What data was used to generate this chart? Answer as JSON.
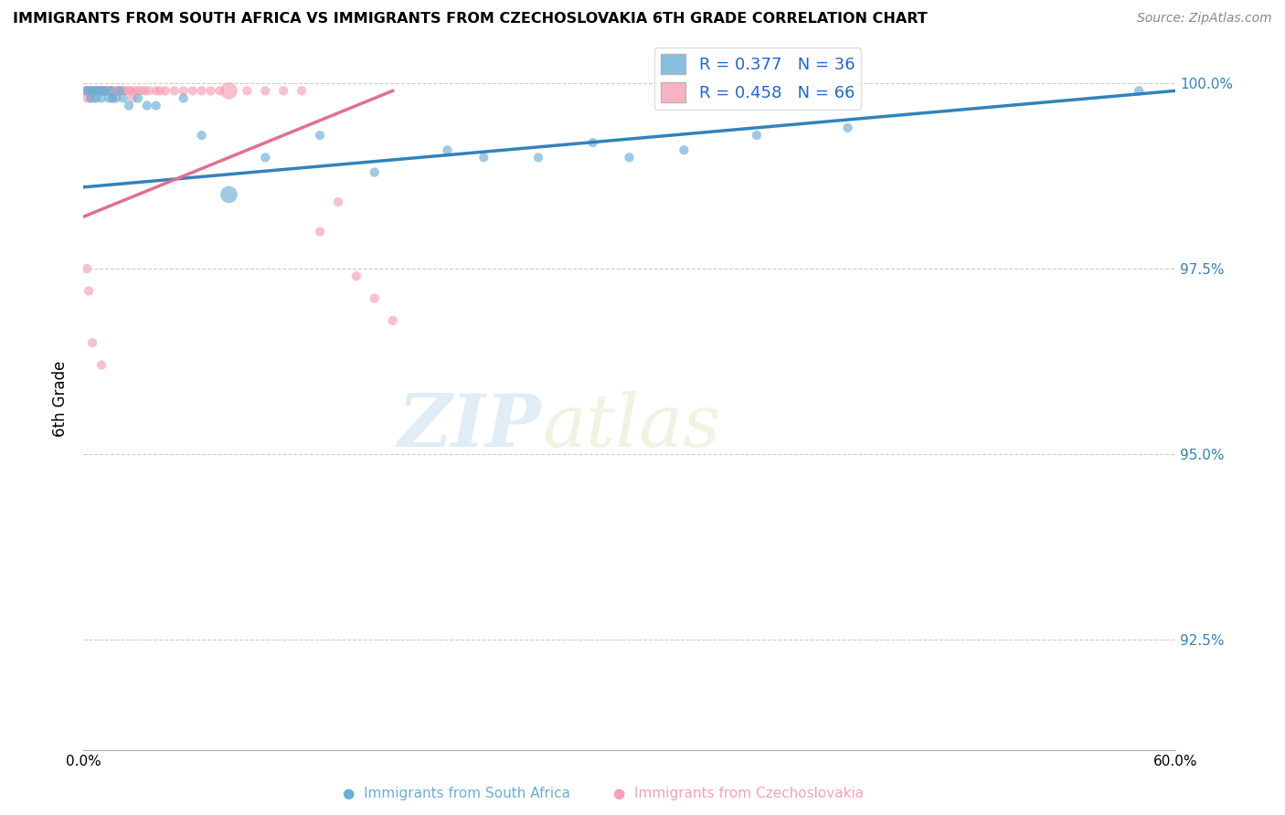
{
  "title": "IMMIGRANTS FROM SOUTH AFRICA VS IMMIGRANTS FROM CZECHOSLOVAKIA 6TH GRADE CORRELATION CHART",
  "source": "Source: ZipAtlas.com",
  "ylabel": "6th Grade",
  "xlim": [
    0.0,
    0.6
  ],
  "ylim": [
    0.91,
    1.005
  ],
  "xticks": [
    0.0,
    0.1,
    0.2,
    0.3,
    0.4,
    0.5,
    0.6
  ],
  "xtick_labels": [
    "0.0%",
    "",
    "",
    "",
    "",
    "",
    "60.0%"
  ],
  "yticks": [
    0.925,
    0.95,
    0.975,
    1.0
  ],
  "ytick_labels": [
    "92.5%",
    "95.0%",
    "97.5%",
    "100.0%"
  ],
  "color_blue": "#6baed6",
  "color_pink": "#fa9fb5",
  "legend_blue_R": "R = 0.377",
  "legend_blue_N": "N = 36",
  "legend_pink_R": "R = 0.458",
  "legend_pink_N": "N = 66",
  "label_blue": "Immigrants from South Africa",
  "label_pink": "Immigrants from Czechoslovakia",
  "watermark_zip": "ZIP",
  "watermark_atlas": "atlas",
  "blue_scatter_x": [
    0.002,
    0.003,
    0.004,
    0.005,
    0.006,
    0.007,
    0.008,
    0.009,
    0.01,
    0.011,
    0.012,
    0.014,
    0.015,
    0.016,
    0.018,
    0.02,
    0.022,
    0.025,
    0.03,
    0.035,
    0.04,
    0.055,
    0.065,
    0.08,
    0.1,
    0.13,
    0.16,
    0.2,
    0.22,
    0.25,
    0.28,
    0.3,
    0.33,
    0.37,
    0.42,
    0.58
  ],
  "blue_scatter_y": [
    0.999,
    0.999,
    0.998,
    0.999,
    0.999,
    0.998,
    0.999,
    0.999,
    0.998,
    0.999,
    0.999,
    0.998,
    0.999,
    0.998,
    0.998,
    0.999,
    0.998,
    0.997,
    0.998,
    0.997,
    0.997,
    0.998,
    0.993,
    0.985,
    0.99,
    0.993,
    0.988,
    0.991,
    0.99,
    0.99,
    0.992,
    0.99,
    0.991,
    0.993,
    0.994,
    0.999
  ],
  "blue_scatter_s": [
    55,
    55,
    55,
    55,
    55,
    55,
    55,
    55,
    55,
    55,
    55,
    55,
    55,
    55,
    55,
    55,
    55,
    55,
    55,
    55,
    55,
    55,
    55,
    180,
    55,
    55,
    55,
    55,
    55,
    55,
    55,
    55,
    55,
    55,
    55,
    55
  ],
  "pink_scatter_x": [
    0.001,
    0.002,
    0.002,
    0.003,
    0.003,
    0.004,
    0.004,
    0.005,
    0.005,
    0.006,
    0.006,
    0.007,
    0.007,
    0.008,
    0.008,
    0.009,
    0.009,
    0.01,
    0.01,
    0.011,
    0.012,
    0.012,
    0.013,
    0.014,
    0.014,
    0.015,
    0.015,
    0.016,
    0.017,
    0.018,
    0.019,
    0.02,
    0.021,
    0.022,
    0.023,
    0.025,
    0.026,
    0.027,
    0.028,
    0.03,
    0.032,
    0.034,
    0.036,
    0.04,
    0.042,
    0.045,
    0.05,
    0.055,
    0.06,
    0.065,
    0.07,
    0.075,
    0.08,
    0.09,
    0.1,
    0.11,
    0.12,
    0.13,
    0.14,
    0.15,
    0.16,
    0.17,
    0.002,
    0.003,
    0.005,
    0.01
  ],
  "pink_scatter_y": [
    0.999,
    0.999,
    0.998,
    0.999,
    0.999,
    0.999,
    0.998,
    0.999,
    0.999,
    0.999,
    0.998,
    0.999,
    0.999,
    0.999,
    0.999,
    0.999,
    0.999,
    0.999,
    0.999,
    0.999,
    0.999,
    0.999,
    0.999,
    0.999,
    0.999,
    0.999,
    0.999,
    0.998,
    0.999,
    0.999,
    0.999,
    0.999,
    0.999,
    0.999,
    0.999,
    0.999,
    0.999,
    0.998,
    0.999,
    0.999,
    0.999,
    0.999,
    0.999,
    0.999,
    0.999,
    0.999,
    0.999,
    0.999,
    0.999,
    0.999,
    0.999,
    0.999,
    0.999,
    0.999,
    0.999,
    0.999,
    0.999,
    0.98,
    0.984,
    0.974,
    0.971,
    0.968,
    0.975,
    0.972,
    0.965,
    0.962
  ],
  "pink_scatter_s": [
    55,
    55,
    55,
    55,
    55,
    55,
    55,
    55,
    55,
    55,
    55,
    55,
    55,
    55,
    55,
    55,
    55,
    55,
    55,
    55,
    55,
    55,
    55,
    55,
    55,
    55,
    55,
    55,
    55,
    55,
    55,
    55,
    55,
    55,
    55,
    55,
    55,
    55,
    55,
    55,
    55,
    55,
    55,
    55,
    55,
    55,
    55,
    55,
    55,
    55,
    55,
    55,
    180,
    55,
    55,
    55,
    55,
    55,
    55,
    55,
    55,
    55,
    55,
    55,
    55,
    55
  ],
  "blue_line_x": [
    0.0,
    0.6
  ],
  "blue_line_y": [
    0.986,
    0.999
  ],
  "pink_line_x": [
    0.0,
    0.17
  ],
  "pink_line_y": [
    0.982,
    0.999
  ]
}
